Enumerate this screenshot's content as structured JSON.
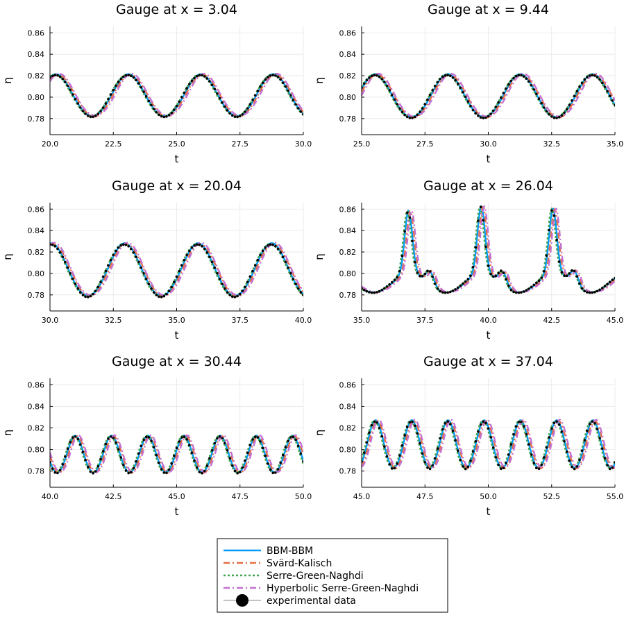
{
  "chart_data": {
    "type": "line",
    "panels": [
      {
        "title": "Gauge at x = 3.04",
        "xlabel": "t",
        "ylabel": "η",
        "xlim": [
          20,
          30
        ],
        "ylim": [
          0.765,
          0.866
        ],
        "xticks": [
          "20.0",
          "22.5",
          "25.0",
          "27.5",
          "30.0"
        ],
        "yticks": [
          "0.78",
          "0.80",
          "0.82",
          "0.84",
          "0.86"
        ],
        "period": 2.86,
        "peak_x": 23.1,
        "mean": 0.801,
        "amp": 0.0195,
        "spikes": [],
        "dips": []
      },
      {
        "title": "Gauge at x = 9.44",
        "xlabel": "t",
        "ylabel": "η",
        "xlim": [
          25,
          35
        ],
        "ylim": [
          0.765,
          0.866
        ],
        "xticks": [
          "25.0",
          "27.5",
          "30.0",
          "32.5",
          "35.0"
        ],
        "yticks": [
          "0.78",
          "0.80",
          "0.82",
          "0.84",
          "0.86"
        ],
        "period": 2.86,
        "peak_x": 28.4,
        "mean": 0.8005,
        "amp": 0.02,
        "spikes": [],
        "dips": []
      },
      {
        "title": "Gauge at x = 20.04",
        "xlabel": "t",
        "ylabel": "η",
        "xlim": [
          30,
          40
        ],
        "ylim": [
          0.765,
          0.866
        ],
        "xticks": [
          "30.0",
          "32.5",
          "35.0",
          "37.5",
          "40.0"
        ],
        "yticks": [
          "0.78",
          "0.80",
          "0.82",
          "0.84",
          "0.86"
        ],
        "period": 2.9,
        "peak_x": 32.95,
        "mean": 0.8025,
        "amp": 0.0245,
        "spikes": [],
        "dips": []
      },
      {
        "title": "Gauge at x = 26.04",
        "xlabel": "t",
        "ylabel": "η",
        "xlim": [
          35,
          45
        ],
        "ylim": [
          0.765,
          0.866
        ],
        "xticks": [
          "35.0",
          "37.5",
          "40.0",
          "42.5",
          "45.0"
        ],
        "yticks": [
          "0.78",
          "0.80",
          "0.82",
          "0.84",
          "0.86"
        ],
        "period": 2.86,
        "peak_x": 36.9,
        "mean": 0.791,
        "amp": 0.009,
        "spikes": [
          {
            "x": 36.85,
            "h": 0.058
          },
          {
            "x": 39.72,
            "h": 0.062
          },
          {
            "x": 42.55,
            "h": 0.06
          }
        ],
        "dips": []
      },
      {
        "title": "Gauge at x = 30.44",
        "xlabel": "t",
        "ylabel": "η",
        "xlim": [
          40,
          50
        ],
        "ylim": [
          0.765,
          0.866
        ],
        "xticks": [
          "40.0",
          "42.5",
          "45.0",
          "47.5",
          "50.0"
        ],
        "yticks": [
          "0.78",
          "0.80",
          "0.82",
          "0.84",
          "0.86"
        ],
        "period": 1.43,
        "peak_x": 41.0,
        "mean": 0.795,
        "amp": 0.017,
        "spikes": [],
        "dips": []
      },
      {
        "title": "Gauge at x = 37.04",
        "xlabel": "t",
        "ylabel": "η",
        "xlim": [
          45,
          55
        ],
        "ylim": [
          0.765,
          0.866
        ],
        "xticks": [
          "45.0",
          "47.5",
          "50.0",
          "52.5",
          "55.0"
        ],
        "yticks": [
          "0.78",
          "0.80",
          "0.82",
          "0.84",
          "0.86"
        ],
        "period": 1.43,
        "peak_x": 45.55,
        "mean": 0.804,
        "amp": 0.022,
        "spikes": [],
        "dips": []
      }
    ],
    "series": [
      {
        "name": "BBM-BBM",
        "color": "#009AFA",
        "style": "solid"
      },
      {
        "name": "Svärd-Kalisch",
        "color": "#E36F47",
        "style": "dashdot"
      },
      {
        "name": "Serre-Green-Naghdi",
        "color": "#3EA44E",
        "style": "dot"
      },
      {
        "name": "Hyperbolic Serre-Green-Naghdi",
        "color": "#C271D2",
        "style": "dashdot"
      },
      {
        "name": "experimental data",
        "color": "#000000",
        "style": "markers"
      }
    ],
    "grid": true,
    "legend_position": "bottom-center"
  }
}
